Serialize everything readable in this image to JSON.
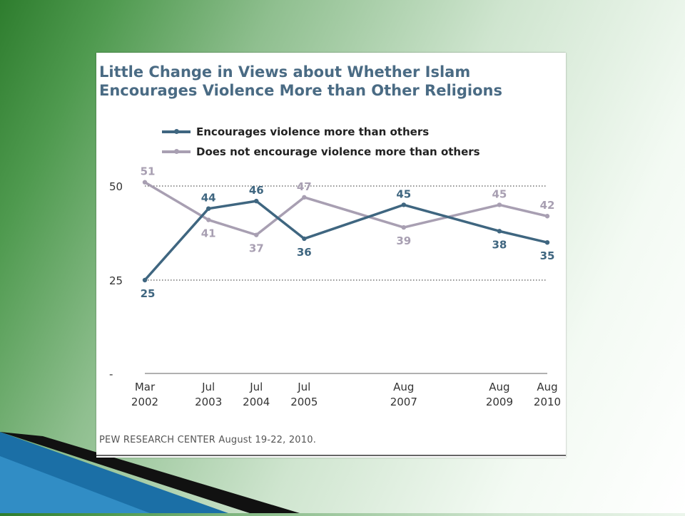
{
  "chart_data": {
    "type": "line",
    "title": "Little Change in Views about Whether Islam Encourages Violence More than Other Religions",
    "title_lines": [
      "Little Change in Views about Whether Islam",
      "Encourages Violence More than Other Religions"
    ],
    "x": [
      "Mar 2002",
      "Jul 2003",
      "Jul 2004",
      "Jul 2005",
      "Aug 2007",
      "Aug 2009",
      "Aug 2010"
    ],
    "x_labels": [
      [
        "Mar",
        "2002"
      ],
      [
        "Jul",
        "2003"
      ],
      [
        "Jul",
        "2004"
      ],
      [
        "Jul",
        "2005"
      ],
      [
        "Aug",
        "2007"
      ],
      [
        "Aug",
        "2009"
      ],
      [
        "Aug",
        "2010"
      ]
    ],
    "x_time": [
      2002.17,
      2003.5,
      2004.5,
      2005.5,
      2007.58,
      2009.58,
      2010.58
    ],
    "series": [
      {
        "name": "Encourages violence more than others",
        "values": [
          25,
          44,
          46,
          36,
          45,
          38,
          35
        ],
        "color": "#3f6680"
      },
      {
        "name": "Does not encourage violence more than others",
        "values": [
          51,
          41,
          37,
          47,
          39,
          45,
          42
        ],
        "color": "#a89fb2"
      }
    ],
    "y_ticks": [
      {
        "value": 50,
        "label": "50"
      },
      {
        "value": 25,
        "label": "25"
      },
      {
        "value": 0,
        "label": "-"
      }
    ],
    "ylim": [
      0,
      55
    ],
    "xlabel": "",
    "ylabel": "",
    "source": "PEW RESEARCH  CENTER August 19-22, 2010."
  }
}
